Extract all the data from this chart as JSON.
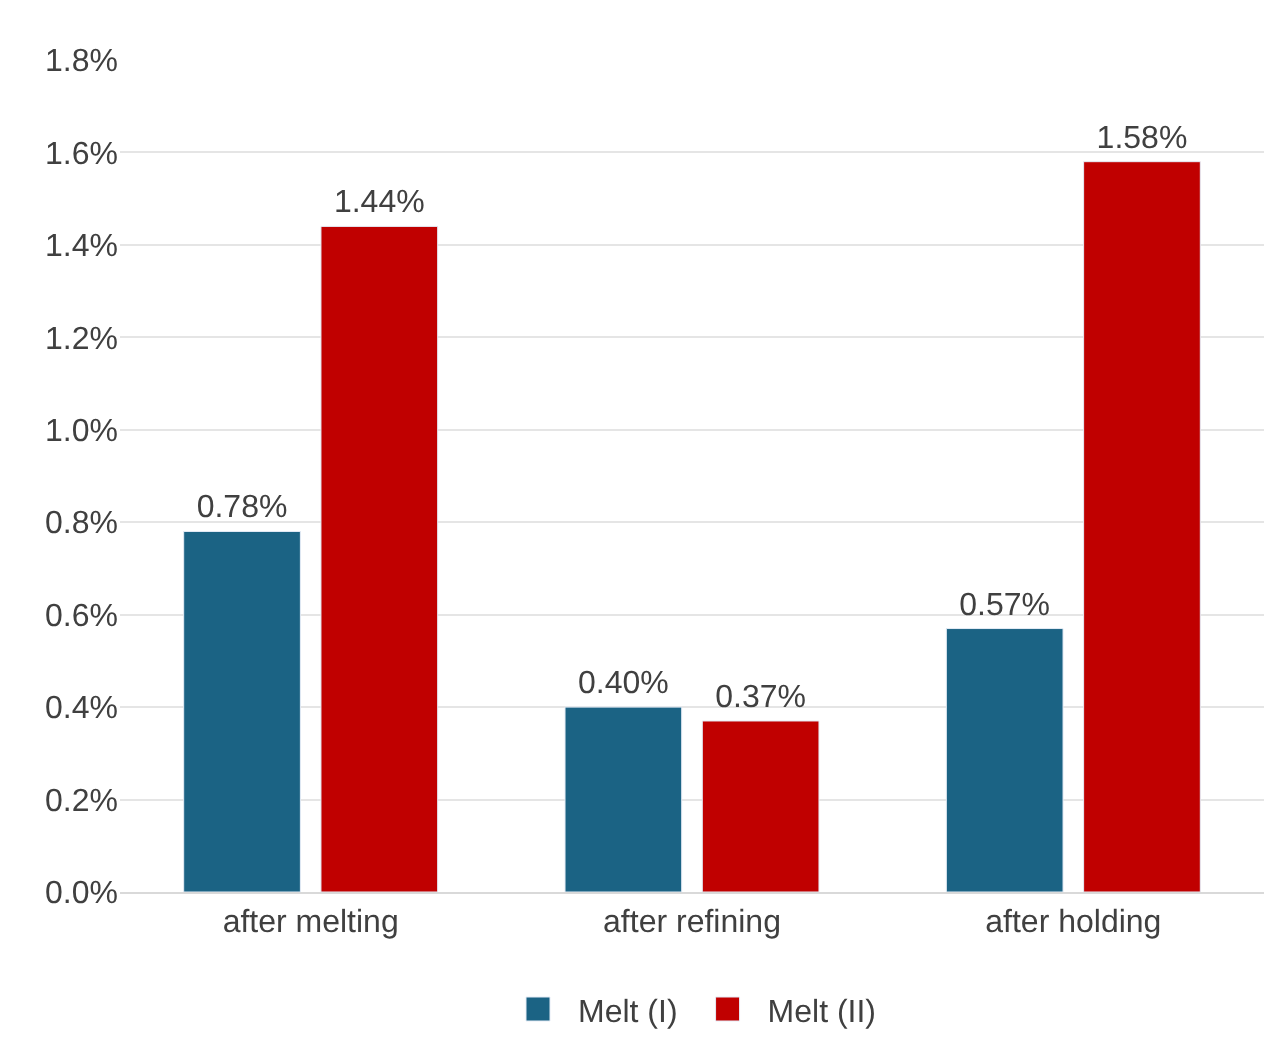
{
  "chart_data": {
    "type": "bar",
    "categories": [
      "after melting",
      "after refining",
      "after holding"
    ],
    "series": [
      {
        "name": "Melt (I)",
        "color": "#1b6384",
        "values": [
          0.78,
          0.4,
          0.57
        ],
        "value_labels": [
          "0.78%",
          "0.40%",
          "0.57%"
        ]
      },
      {
        "name": "Melt (II)",
        "color": "#c00000",
        "values": [
          1.44,
          0.37,
          1.58
        ],
        "value_labels": [
          "1.44%",
          "0.37%",
          "1.58%"
        ]
      }
    ],
    "ylim": [
      0,
      1.8
    ],
    "yticks": [
      {
        "value": 0,
        "label": "0.0%"
      },
      {
        "value": 0.2,
        "label": "0.2%"
      },
      {
        "value": 0.4,
        "label": "0.4%"
      },
      {
        "value": 0.6,
        "label": "0.6%"
      },
      {
        "value": 0.8,
        "label": "0.8%"
      },
      {
        "value": 1.0,
        "label": "1.0%"
      },
      {
        "value": 1.2,
        "label": "1.2%"
      },
      {
        "value": 1.4,
        "label": "1.4%"
      },
      {
        "value": 1.6,
        "label": "1.6%"
      },
      {
        "value": 1.8,
        "label": "1.8%"
      }
    ],
    "grid": "y",
    "legend": "bottom"
  }
}
